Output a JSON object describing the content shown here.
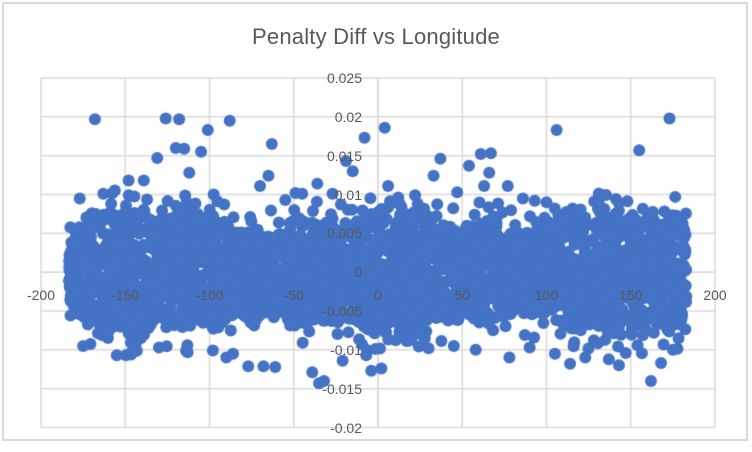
{
  "chart_data": {
    "type": "scatter",
    "title": "Penalty Diff vs Longitude",
    "xlabel": "",
    "ylabel": "",
    "legend": false,
    "grid": true,
    "x_axis": {
      "min": -200,
      "max": 200,
      "tick_step": 50,
      "tick_labels": [
        "-200",
        "-150",
        "-100",
        "-50",
        "0",
        "50",
        "100",
        "150",
        "200"
      ],
      "tick_values": [
        -200,
        -150,
        -100,
        -50,
        0,
        50,
        100,
        150,
        200
      ]
    },
    "y_axis": {
      "min": -0.02,
      "max": 0.025,
      "tick_step": 0.005,
      "tick_labels": [
        "0.025",
        "0.02",
        "0.015",
        "0.01",
        "0.005",
        "0",
        "-0.005",
        "-0.01",
        "-0.015",
        "-0.02"
      ],
      "tick_values": [
        0.025,
        0.02,
        0.015,
        0.01,
        0.005,
        0,
        -0.005,
        -0.01,
        -0.015,
        -0.02
      ]
    },
    "dense_band": {
      "description": "solid cloud of points spanning the longitude range with wavy edges",
      "x_min": -183.5,
      "x_max": 183,
      "y_half_width_base": 0.0064,
      "wave_amps": [
        0.0009,
        0.0006,
        0.0004
      ],
      "wave_freqs": [
        0.043,
        0.115,
        0.27
      ],
      "wave_phases": [
        1.3,
        0.5,
        2.1
      ],
      "n_core": 3200,
      "n_fringe": 300,
      "fringe_extent": 0.0032,
      "seed": 7
    },
    "outliers": [
      [
        -168,
        0.0197
      ],
      [
        -126,
        0.0198
      ],
      [
        -118,
        0.0197
      ],
      [
        -88,
        0.0195
      ],
      [
        -101,
        0.0183
      ],
      [
        -120,
        0.016
      ],
      [
        -115,
        0.0159
      ],
      [
        -105,
        0.0155
      ],
      [
        -63,
        0.0165
      ],
      [
        -131,
        0.0147
      ],
      [
        -112,
        0.0128
      ],
      [
        -65,
        0.0124
      ],
      [
        -148,
        0.0118
      ],
      [
        -139,
        0.0118
      ],
      [
        -163,
        0.0101
      ],
      [
        -70,
        0.0111
      ],
      [
        -49,
        0.0102
      ],
      [
        -45,
        0.0101
      ],
      [
        -36,
        0.0114
      ],
      [
        -27,
        0.0101
      ],
      [
        -8,
        0.0173
      ],
      [
        -15,
        0.013
      ],
      [
        -19,
        0.0143
      ],
      [
        4,
        0.0186
      ],
      [
        106,
        0.0183
      ],
      [
        173,
        0.0198
      ],
      [
        155,
        0.0157
      ],
      [
        37,
        0.0146
      ],
      [
        67,
        0.0153
      ],
      [
        61,
        0.0152
      ],
      [
        54,
        0.0137
      ],
      [
        33,
        0.0124
      ],
      [
        66,
        0.0128
      ],
      [
        63,
        0.0111
      ],
      [
        77,
        0.0111
      ],
      [
        6,
        0.0111
      ],
      [
        93,
        0.0092
      ],
      [
        131,
        0.0089
      ],
      [
        143,
        0.0089
      ],
      [
        170,
        0.0078
      ],
      [
        -177,
        0.0095
      ],
      [
        -55,
        0.0093
      ],
      [
        12,
        0.0096
      ],
      [
        22,
        0.0099
      ],
      [
        47,
        0.0103
      ],
      [
        86,
        0.0095
      ],
      [
        100,
        0.009
      ],
      [
        -155,
        -0.0107
      ],
      [
        -90,
        -0.011
      ],
      [
        -86,
        -0.0105
      ],
      [
        -77,
        -0.0121
      ],
      [
        -68,
        -0.0121
      ],
      [
        -61,
        -0.0122
      ],
      [
        -39,
        -0.0129
      ],
      [
        -32,
        -0.014
      ],
      [
        -21,
        -0.0114
      ],
      [
        -7,
        -0.0107
      ],
      [
        -4,
        -0.0127
      ],
      [
        -35,
        -0.0143
      ],
      [
        2,
        -0.0124
      ],
      [
        78,
        -0.011
      ],
      [
        105,
        -0.0105
      ],
      [
        114,
        -0.0118
      ],
      [
        123,
        -0.011
      ],
      [
        137,
        -0.0112
      ],
      [
        143,
        -0.012
      ],
      [
        147,
        -0.0104
      ],
      [
        168,
        -0.0117
      ],
      [
        162,
        -0.014
      ],
      [
        -113,
        -0.0103
      ],
      [
        30,
        -0.0098
      ],
      [
        45,
        -0.0095
      ],
      [
        -130,
        -0.0097
      ],
      [
        -144,
        -0.0094
      ],
      [
        58,
        -0.01
      ],
      [
        90,
        -0.0097
      ],
      [
        175,
        -0.01
      ],
      [
        -175,
        -0.0095
      ],
      [
        -98,
        -0.0101
      ]
    ]
  },
  "colors": {
    "marker": "#4472C4",
    "gridline": "#D9D9D9",
    "axis_line": "#D9D9D9",
    "border": "#D9D9D9",
    "axis_text": "#595959",
    "title_text": "#595959",
    "background": "#FFFFFF"
  }
}
